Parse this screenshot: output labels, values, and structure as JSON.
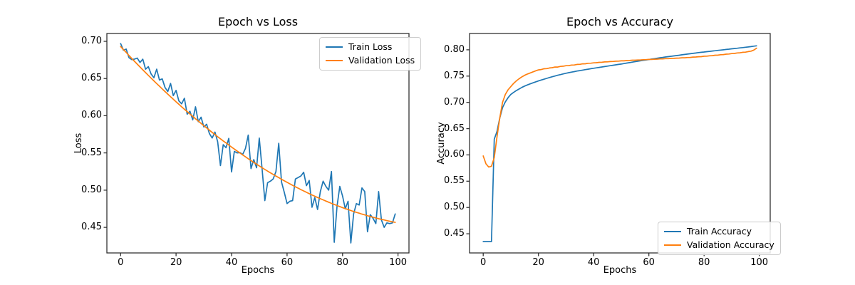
{
  "figure": {
    "background": "#ffffff",
    "text_color": "#000000",
    "spine_color": "#2b2b2b"
  },
  "chart_data": [
    {
      "type": "line",
      "title": "Epoch vs Loss",
      "xlabel": "Epochs",
      "ylabel": "Loss",
      "xlim": [
        -4.95,
        103.95
      ],
      "ylim": [
        0.4156,
        0.7105
      ],
      "xticks": [
        0,
        20,
        40,
        60,
        80,
        100
      ],
      "yticks": [
        0.45,
        0.5,
        0.55,
        0.6,
        0.65,
        0.7
      ],
      "grid": false,
      "legend_position": "upper right",
      "x_range": [
        0,
        99
      ],
      "x_step": 1,
      "series": [
        {
          "name": "Train Loss",
          "color": "#1f77b4",
          "values": [
            0.697,
            0.688,
            0.6895,
            0.678,
            0.6755,
            0.676,
            0.6775,
            0.6715,
            0.676,
            0.6625,
            0.666,
            0.656,
            0.651,
            0.6625,
            0.648,
            0.6495,
            0.638,
            0.6325,
            0.6435,
            0.627,
            0.634,
            0.62,
            0.616,
            0.6235,
            0.602,
            0.606,
            0.5945,
            0.612,
            0.592,
            0.598,
            0.585,
            0.5885,
            0.576,
            0.57,
            0.578,
            0.565,
            0.533,
            0.561,
            0.557,
            0.5695,
            0.5245,
            0.552,
            0.55,
            0.5505,
            0.548,
            0.556,
            0.574,
            0.529,
            0.541,
            0.53,
            0.57,
            0.529,
            0.486,
            0.51,
            0.512,
            0.515,
            0.525,
            0.563,
            0.511,
            0.497,
            0.482,
            0.485,
            0.486,
            0.515,
            0.517,
            0.519,
            0.524,
            0.506,
            0.513,
            0.477,
            0.49,
            0.474,
            0.498,
            0.512,
            0.505,
            0.5,
            0.525,
            0.43,
            0.478,
            0.505,
            0.492,
            0.475,
            0.485,
            0.429,
            0.468,
            0.482,
            0.48,
            0.503,
            0.498,
            0.444,
            0.467,
            0.462,
            0.455,
            0.498,
            0.46,
            0.45,
            0.456,
            0.455,
            0.456,
            0.468
          ]
        },
        {
          "name": "Validation Loss",
          "color": "#ff7f0e",
          "values": [
            0.693,
            0.689,
            0.685,
            0.681,
            0.6771,
            0.6732,
            0.6693,
            0.6655,
            0.6617,
            0.6579,
            0.6542,
            0.6505,
            0.6468,
            0.6432,
            0.6396,
            0.636,
            0.6325,
            0.629,
            0.6255,
            0.6221,
            0.6187,
            0.6154,
            0.612,
            0.6087,
            0.6055,
            0.6023,
            0.5991,
            0.5959,
            0.5928,
            0.5897,
            0.5866,
            0.5836,
            0.5806,
            0.5776,
            0.5747,
            0.5718,
            0.569,
            0.5661,
            0.5634,
            0.5606,
            0.5579,
            0.5552,
            0.5525,
            0.5499,
            0.5473,
            0.5448,
            0.5422,
            0.5398,
            0.5373,
            0.5349,
            0.5325,
            0.5301,
            0.5278,
            0.5255,
            0.5233,
            0.5211,
            0.5189,
            0.5168,
            0.5146,
            0.5125,
            0.5105,
            0.5085,
            0.5065,
            0.5045,
            0.5026,
            0.5007,
            0.4989,
            0.4971,
            0.4953,
            0.4935,
            0.4918,
            0.4901,
            0.4885,
            0.4869,
            0.4853,
            0.4838,
            0.4822,
            0.4808,
            0.4793,
            0.4779,
            0.4765,
            0.4752,
            0.4739,
            0.4726,
            0.4713,
            0.4701,
            0.469,
            0.4678,
            0.4667,
            0.4656,
            0.4646,
            0.4636,
            0.4626,
            0.4616,
            0.4608,
            0.4599,
            0.459,
            0.4582,
            0.4574,
            0.4567
          ]
        }
      ]
    },
    {
      "type": "line",
      "title": "Epoch vs Accuracy",
      "xlabel": "Epochs",
      "ylabel": "Accuracy",
      "xlim": [
        -4.95,
        103.95
      ],
      "ylim": [
        0.4135,
        0.8311
      ],
      "xticks": [
        0,
        20,
        40,
        60,
        80,
        100
      ],
      "yticks": [
        0.45,
        0.5,
        0.55,
        0.6,
        0.65,
        0.7,
        0.75,
        0.8
      ],
      "grid": false,
      "legend_position": "lower right",
      "x_range": [
        0,
        99
      ],
      "x_step": 1,
      "series": [
        {
          "name": "Train Accuracy",
          "color": "#1f77b4",
          "values": [
            0.435,
            0.435,
            0.435,
            0.435,
            0.63,
            0.645,
            0.67,
            0.69,
            0.701,
            0.709,
            0.715,
            0.719,
            0.7225,
            0.7255,
            0.7285,
            0.731,
            0.7332,
            0.7352,
            0.7372,
            0.739,
            0.7408,
            0.7425,
            0.7441,
            0.7457,
            0.7473,
            0.7488,
            0.7502,
            0.7516,
            0.7529,
            0.7542,
            0.7554,
            0.7565,
            0.7576,
            0.7586,
            0.7596,
            0.7605,
            0.7614,
            0.7623,
            0.7632,
            0.7641,
            0.765,
            0.7658,
            0.7666,
            0.7674,
            0.7682,
            0.769,
            0.7698,
            0.7706,
            0.7714,
            0.7722,
            0.773,
            0.7739,
            0.7748,
            0.7757,
            0.7766,
            0.7775,
            0.7784,
            0.7792,
            0.78,
            0.7808,
            0.7816,
            0.7824,
            0.7832,
            0.784,
            0.7848,
            0.7856,
            0.7863,
            0.787,
            0.7877,
            0.7884,
            0.7891,
            0.7898,
            0.7905,
            0.7912,
            0.7919,
            0.7926,
            0.7933,
            0.794,
            0.7947,
            0.7953,
            0.7959,
            0.7965,
            0.7971,
            0.7977,
            0.7983,
            0.7989,
            0.7995,
            0.8001,
            0.8007,
            0.8013,
            0.8019,
            0.8025,
            0.8031,
            0.8037,
            0.8043,
            0.8049,
            0.8055,
            0.8062,
            0.8069,
            0.8076
          ]
        },
        {
          "name": "Validation Accuracy",
          "color": "#ff7f0e",
          "values": [
            0.598,
            0.583,
            0.577,
            0.5785,
            0.595,
            0.635,
            0.67,
            0.7,
            0.715,
            0.724,
            0.73,
            0.736,
            0.741,
            0.745,
            0.7485,
            0.7515,
            0.754,
            0.756,
            0.758,
            0.76,
            0.7618,
            0.7625,
            0.764,
            0.7642,
            0.7655,
            0.766,
            0.7672,
            0.7673,
            0.7685,
            0.7688,
            0.7698,
            0.77,
            0.771,
            0.7712,
            0.7722,
            0.7724,
            0.7733,
            0.7735,
            0.7744,
            0.7745,
            0.7753,
            0.7755,
            0.7762,
            0.7763,
            0.777,
            0.7771,
            0.7777,
            0.7778,
            0.7784,
            0.7785,
            0.779,
            0.7791,
            0.7796,
            0.7797,
            0.7802,
            0.7803,
            0.7807,
            0.7808,
            0.7812,
            0.7813,
            0.7817,
            0.7818,
            0.7822,
            0.7823,
            0.7827,
            0.7828,
            0.7832,
            0.7833,
            0.7837,
            0.7838,
            0.7842,
            0.7843,
            0.7848,
            0.7849,
            0.7854,
            0.7856,
            0.7862,
            0.7863,
            0.7869,
            0.7871,
            0.7878,
            0.788,
            0.7887,
            0.7889,
            0.7897,
            0.7899,
            0.7907,
            0.7909,
            0.7918,
            0.792,
            0.7929,
            0.7931,
            0.7941,
            0.7943,
            0.7953,
            0.7956,
            0.7966,
            0.7975,
            0.7995,
            0.803
          ]
        }
      ]
    }
  ]
}
